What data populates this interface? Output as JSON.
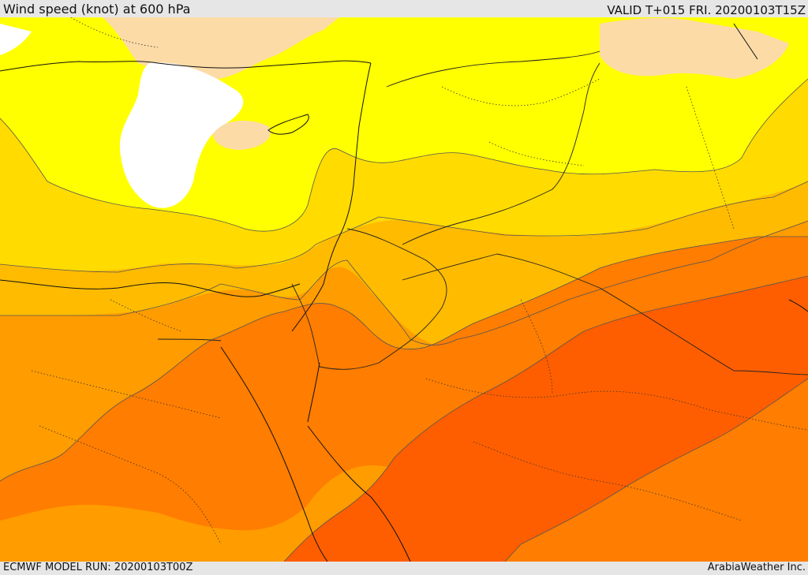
{
  "header": {
    "title": "Wind speed (knot) at 600 hPa",
    "valid": "VALID T+015 FRI. 20200103T15Z"
  },
  "footer": {
    "model_run": "ECMWF MODEL RUN: 20200103T00Z",
    "brand": "ArabiaWeather Inc."
  },
  "map": {
    "palette": {
      "calm": "#ffffff",
      "light": "#fcdba6",
      "moderate": "#ffff00",
      "fresh": "#ffdb00",
      "strong": "#ffbb00",
      "very_strong": "#ff9c00",
      "gale": "#ff7d00",
      "severe": "#ff5e00"
    }
  }
}
